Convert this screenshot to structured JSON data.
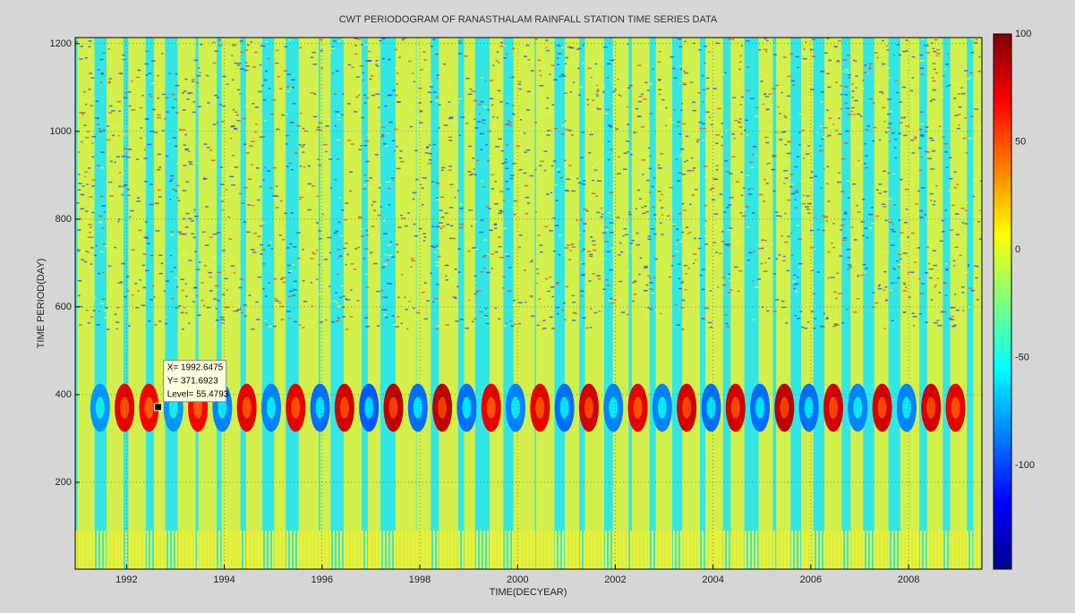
{
  "chart_data": {
    "type": "heatmap",
    "title": "CWT PERIODOGRAM OF RANASTHALAM RAINFALL STATION TIME SERIES DATA",
    "x_label": "TIME(DECYEAR)",
    "y_label": "TIME PERIOD(DAY)",
    "xlim": [
      1990.95,
      2009.5
    ],
    "ylim": [
      2,
      1214
    ],
    "xticks": [
      1992,
      1994,
      1996,
      1998,
      2000,
      2002,
      2004,
      2006,
      2008
    ],
    "yticks": [
      200,
      400,
      600,
      800,
      1000,
      1200
    ],
    "grid": true,
    "colormap": "jet",
    "clim": [
      -148,
      100
    ],
    "colorbar_ticks": [
      -100,
      -50,
      0,
      50,
      100
    ],
    "band_period": 370,
    "x": [
      1991.46,
      1991.96,
      1992.46,
      1992.96,
      1993.46,
      1993.96,
      1994.46,
      1994.96,
      1995.46,
      1995.96,
      1996.46,
      1996.96,
      1997.46,
      1997.96,
      1998.46,
      1998.96,
      1999.46,
      1999.96,
      2000.46,
      2000.96,
      2001.46,
      2001.96,
      2002.46,
      2002.96,
      2003.46,
      2003.96,
      2004.46,
      2004.96,
      2005.46,
      2005.96,
      2006.46,
      2006.96,
      2007.46,
      2007.96,
      2008.46,
      2008.96
    ],
    "values": [
      -80,
      75,
      70,
      -80,
      70,
      -85,
      75,
      -85,
      75,
      -90,
      80,
      -95,
      85,
      -90,
      85,
      -90,
      75,
      -85,
      75,
      -90,
      80,
      -85,
      75,
      -85,
      80,
      -90,
      80,
      -90,
      85,
      -90,
      80,
      -85,
      80,
      -85,
      80,
      75
    ],
    "datatip": {
      "x": 1992.6475,
      "y": 371.6923,
      "level": 55.4793,
      "labels": [
        "X= 1992.6475",
        "Y= 371.6923",
        "Level= 55.4793"
      ]
    }
  }
}
